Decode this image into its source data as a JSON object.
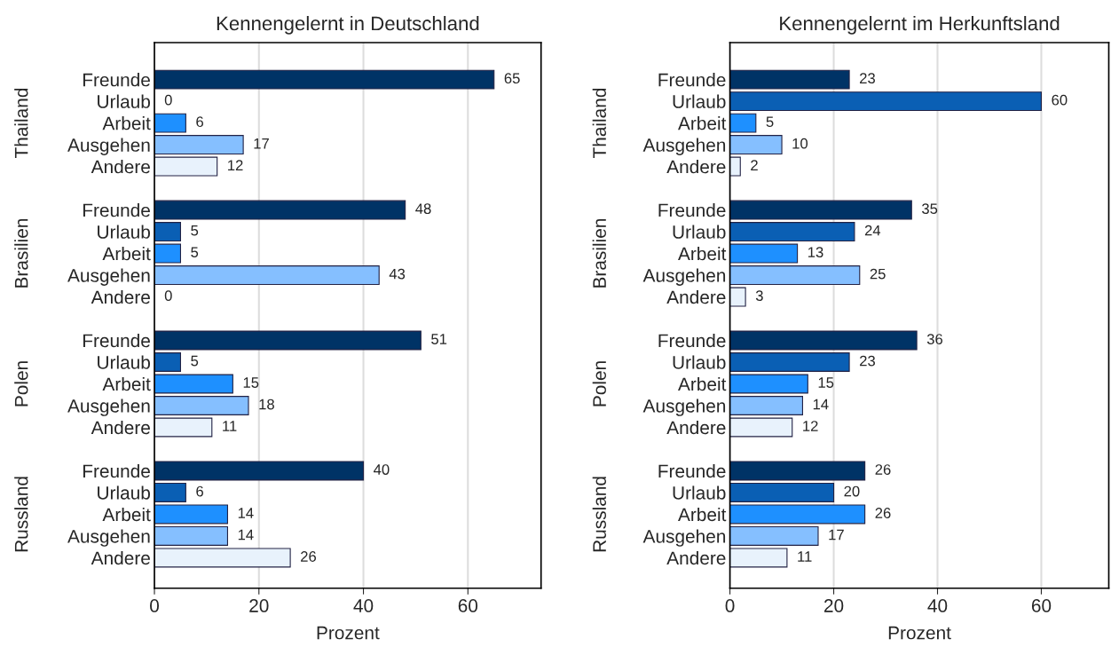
{
  "chart_data": [
    {
      "type": "bar",
      "orientation": "horizontal",
      "title": "Kennengelernt in Deutschland",
      "xlabel": "Prozent",
      "categories": [
        "Freunde",
        "Urlaub",
        "Arbeit",
        "Ausgehen",
        "Andere",
        null,
        "Freunde",
        "Urlaub",
        "Arbeit",
        "Ausgehen",
        "Andere",
        null,
        "Freunde",
        "Urlaub",
        "Arbeit",
        "Ausgehen",
        "Andere",
        null,
        "Freunde",
        "Urlaub",
        "Arbeit",
        "Ausgehen",
        "Andere"
      ],
      "values": [
        65,
        0,
        6,
        17,
        12,
        null,
        48,
        5,
        5,
        43,
        0,
        null,
        51,
        5,
        15,
        18,
        11,
        null,
        40,
        6,
        14,
        14,
        26
      ],
      "colors": [
        "#003366",
        "#0a5fb4",
        "#1e90ff",
        "#85bfff",
        "#e8f2fc",
        null,
        "#003366",
        "#0a5fb4",
        "#1e90ff",
        "#85bfff",
        "#e8f2fc",
        null,
        "#003366",
        "#0a5fb4",
        "#1e90ff",
        "#85bfff",
        "#e8f2fc",
        null,
        "#003366",
        "#0a5fb4",
        "#1e90ff",
        "#85bfff",
        "#e8f2fc"
      ],
      "annotations": [
        "Thailand",
        "Brasilien",
        "Polen",
        "Russland"
      ],
      "data_labels": true,
      "xlim": [
        0,
        74
      ],
      "xticks": [
        0,
        20,
        40,
        60
      ],
      "grid": "x"
    },
    {
      "type": "bar",
      "orientation": "horizontal",
      "title": "Kennengelernt im Herkunftsland",
      "xlabel": "Prozent",
      "categories": [
        "Freunde",
        "Urlaub",
        "Arbeit",
        "Ausgehen",
        "Andere",
        null,
        "Freunde",
        "Urlaub",
        "Arbeit",
        "Ausgehen",
        "Andere",
        null,
        "Freunde",
        "Urlaub",
        "Arbeit",
        "Ausgehen",
        "Andere",
        null,
        "Freunde",
        "Urlaub",
        "Arbeit",
        "Ausgehen",
        "Andere"
      ],
      "values": [
        23,
        60,
        5,
        10,
        2,
        null,
        35,
        24,
        13,
        25,
        3,
        null,
        36,
        23,
        15,
        14,
        12,
        null,
        26,
        20,
        26,
        17,
        11
      ],
      "colors": [
        "#003366",
        "#0a5fb4",
        "#1e90ff",
        "#85bfff",
        "#e8f2fc",
        null,
        "#003366",
        "#0a5fb4",
        "#1e90ff",
        "#85bfff",
        "#e8f2fc",
        null,
        "#003366",
        "#0a5fb4",
        "#1e90ff",
        "#85bfff",
        "#e8f2fc",
        null,
        "#003366",
        "#0a5fb4",
        "#1e90ff",
        "#85bfff",
        "#e8f2fc"
      ],
      "annotations": [
        "Thailand",
        "Brasilien",
        "Polen",
        "Russland"
      ],
      "data_labels": true,
      "xlim": [
        0,
        73
      ],
      "xticks": [
        0,
        20,
        40,
        60
      ],
      "grid": "x"
    }
  ]
}
